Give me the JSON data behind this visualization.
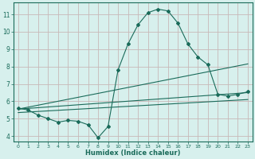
{
  "xlabel": "Humidex (Indice chaleur)",
  "bg_color": "#d7f0ed",
  "line_color": "#1a6b5a",
  "grid_color": "#c8b8b8",
  "xlim": [
    -0.5,
    23.5
  ],
  "ylim": [
    3.7,
    11.7
  ],
  "xticks": [
    0,
    1,
    2,
    3,
    4,
    5,
    6,
    7,
    8,
    9,
    10,
    11,
    12,
    13,
    14,
    15,
    16,
    17,
    18,
    19,
    20,
    21,
    22,
    23
  ],
  "yticks": [
    4,
    5,
    6,
    7,
    8,
    9,
    10,
    11
  ],
  "main_series_x": [
    0,
    1,
    2,
    3,
    4,
    5,
    6,
    7,
    8,
    9,
    10,
    11,
    12,
    13,
    14,
    15,
    16,
    17,
    18,
    19,
    20,
    21,
    22,
    23
  ],
  "main_series_y": [
    5.6,
    5.5,
    5.2,
    5.0,
    4.8,
    4.9,
    4.85,
    4.65,
    3.9,
    4.55,
    7.8,
    9.3,
    10.4,
    11.1,
    11.3,
    11.2,
    10.5,
    9.3,
    8.55,
    8.1,
    6.4,
    6.3,
    6.4,
    6.55
  ],
  "line1_x": [
    0,
    23
  ],
  "line1_y": [
    5.55,
    6.5
  ],
  "line2_x": [
    0,
    23
  ],
  "line2_y": [
    5.55,
    8.15
  ],
  "line3_x": [
    0,
    23
  ],
  "line3_y": [
    5.35,
    6.1
  ]
}
